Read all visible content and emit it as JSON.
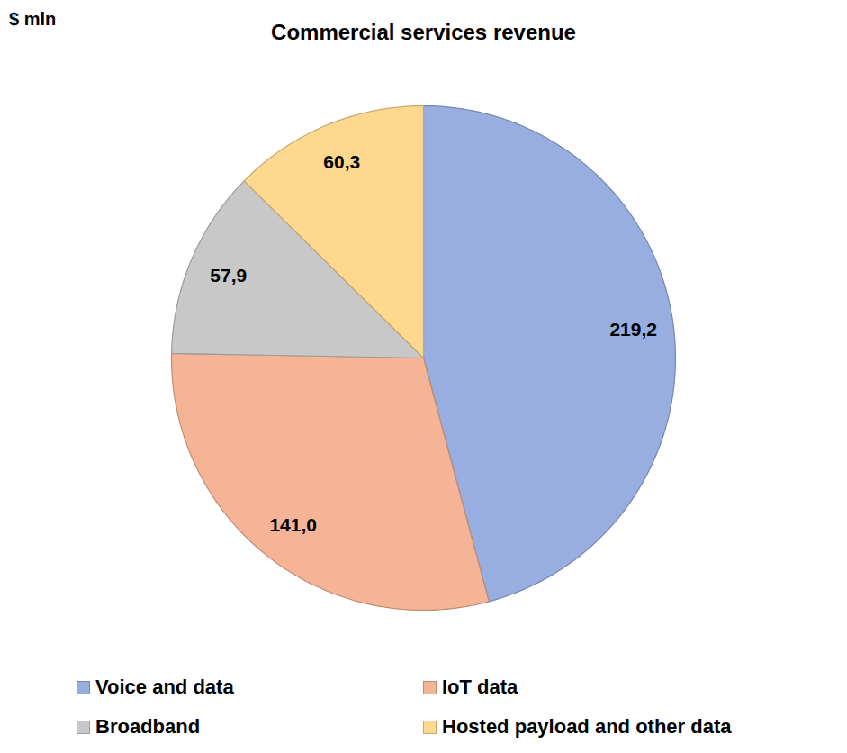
{
  "chart_data": {
    "type": "pie",
    "title": "Commercial services revenue",
    "subtitle": "$ mln",
    "categories": [
      "Voice and data",
      "IoT data",
      "Broadband",
      "Hosted payload and other data"
    ],
    "values": [
      219.2,
      141.0,
      57.9,
      60.3
    ],
    "value_labels": [
      "219,2",
      "141,0",
      "57,9",
      "60,3"
    ],
    "colors": [
      "#98ade0",
      "#f6b496",
      "#c8c8c8",
      "#fed88f"
    ],
    "data_labels": true,
    "legend": "bottom"
  }
}
